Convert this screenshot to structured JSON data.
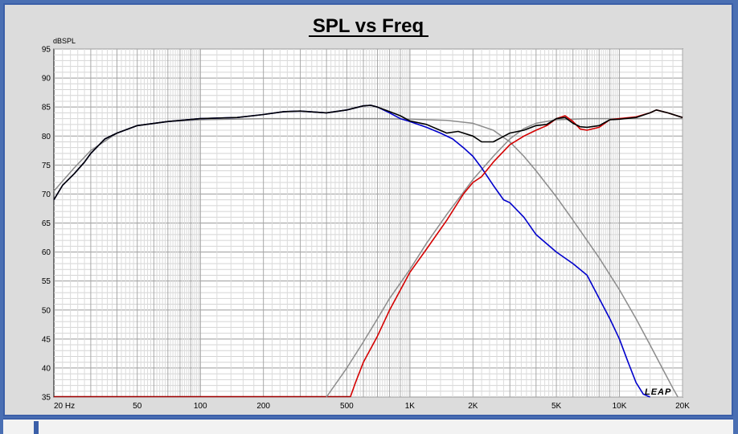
{
  "chart_data": {
    "type": "line",
    "title": "SPL vs Freq",
    "ylabel": "dBSPL",
    "xscale": "log",
    "xlim": [
      20,
      20000
    ],
    "ylim": [
      35,
      95
    ],
    "yticks": [
      35,
      40,
      45,
      50,
      55,
      60,
      65,
      70,
      75,
      80,
      85,
      90,
      95
    ],
    "xticks": [
      {
        "value": 20,
        "label": "20  Hz"
      },
      {
        "value": 50,
        "label": "50"
      },
      {
        "value": 100,
        "label": "100"
      },
      {
        "value": 200,
        "label": "200"
      },
      {
        "value": 500,
        "label": "500"
      },
      {
        "value": 1000,
        "label": "1K"
      },
      {
        "value": 2000,
        "label": "2K"
      },
      {
        "value": 5000,
        "label": "5K"
      },
      {
        "value": 10000,
        "label": "10K"
      },
      {
        "value": 20000,
        "label": "20K"
      }
    ],
    "grid": true,
    "series": [
      {
        "color": "#8c8c8c",
        "points": [
          [
            20,
            70.5
          ],
          [
            25,
            74.5
          ],
          [
            30,
            77.5
          ],
          [
            40,
            80.5
          ],
          [
            50,
            81.8
          ],
          [
            70,
            82.5
          ],
          [
            100,
            82.8
          ],
          [
            200,
            83
          ],
          [
            300,
            83
          ],
          [
            500,
            83
          ],
          [
            700,
            83
          ],
          [
            1000,
            82.9
          ],
          [
            1500,
            82.7
          ],
          [
            2000,
            82.2
          ],
          [
            2500,
            81
          ],
          [
            3000,
            79
          ],
          [
            3500,
            76.5
          ],
          [
            4000,
            74
          ],
          [
            5000,
            69.5
          ],
          [
            6000,
            65.5
          ],
          [
            7000,
            62
          ],
          [
            8000,
            59
          ],
          [
            10000,
            53.5
          ],
          [
            12000,
            48.5
          ],
          [
            14000,
            44
          ],
          [
            16000,
            40
          ],
          [
            18000,
            36.5
          ],
          [
            19000,
            35
          ]
        ]
      },
      {
        "color": "#8c8c8c",
        "points": [
          [
            400,
            35
          ],
          [
            500,
            40
          ],
          [
            600,
            44.5
          ],
          [
            700,
            48.5
          ],
          [
            800,
            52
          ],
          [
            1000,
            57
          ],
          [
            1200,
            61.5
          ],
          [
            1500,
            66.5
          ],
          [
            2000,
            72.5
          ],
          [
            2500,
            76.5
          ],
          [
            3000,
            79.5
          ],
          [
            3500,
            81.3
          ],
          [
            4000,
            82.2
          ],
          [
            5000,
            82.8
          ],
          [
            7000,
            83
          ],
          [
            10000,
            83
          ],
          [
            15000,
            83
          ],
          [
            20000,
            83
          ]
        ]
      },
      {
        "color": "#0000cc",
        "points": [
          [
            20,
            69
          ],
          [
            22,
            71.5
          ],
          [
            25,
            73.5
          ],
          [
            28,
            75.5
          ],
          [
            30,
            77
          ],
          [
            35,
            79.5
          ],
          [
            40,
            80.5
          ],
          [
            50,
            81.8
          ],
          [
            70,
            82.5
          ],
          [
            100,
            83
          ],
          [
            150,
            83.2
          ],
          [
            200,
            83.7
          ],
          [
            250,
            84.2
          ],
          [
            300,
            84.3
          ],
          [
            400,
            84
          ],
          [
            500,
            84.5
          ],
          [
            600,
            85.2
          ],
          [
            650,
            85.3
          ],
          [
            700,
            85
          ],
          [
            800,
            84
          ],
          [
            900,
            83
          ],
          [
            1000,
            82.5
          ],
          [
            1200,
            81.5
          ],
          [
            1400,
            80.5
          ],
          [
            1600,
            79.5
          ],
          [
            1800,
            78
          ],
          [
            2000,
            76.5
          ],
          [
            2200,
            74.5
          ],
          [
            2500,
            71.5
          ],
          [
            2800,
            69
          ],
          [
            3000,
            68.5
          ],
          [
            3500,
            66
          ],
          [
            4000,
            63
          ],
          [
            5000,
            60
          ],
          [
            6000,
            58
          ],
          [
            7000,
            56
          ],
          [
            8000,
            52
          ],
          [
            9000,
            48.5
          ],
          [
            10000,
            45
          ],
          [
            11000,
            41
          ],
          [
            12000,
            37.5
          ],
          [
            13000,
            35.5
          ],
          [
            14000,
            35
          ]
        ]
      },
      {
        "color": "#d40000",
        "points": [
          [
            520,
            35
          ],
          [
            550,
            37.5
          ],
          [
            600,
            41
          ],
          [
            700,
            45.5
          ],
          [
            800,
            50
          ],
          [
            1000,
            56.5
          ],
          [
            1200,
            60.5
          ],
          [
            1500,
            65.5
          ],
          [
            1800,
            70
          ],
          [
            2000,
            72
          ],
          [
            2200,
            73
          ],
          [
            2500,
            75.5
          ],
          [
            3000,
            78.5
          ],
          [
            3500,
            80
          ],
          [
            4000,
            81
          ],
          [
            4500,
            81.8
          ],
          [
            5000,
            83
          ],
          [
            5500,
            83.5
          ],
          [
            6000,
            82.5
          ],
          [
            6500,
            81.2
          ],
          [
            7000,
            81
          ],
          [
            8000,
            81.5
          ],
          [
            9000,
            82.8
          ],
          [
            10000,
            83
          ],
          [
            12000,
            83.3
          ],
          [
            14000,
            84
          ],
          [
            15000,
            84.5
          ],
          [
            17000,
            84
          ],
          [
            20000,
            83.2
          ]
        ]
      },
      {
        "color": "#000000",
        "points": [
          [
            20,
            69
          ],
          [
            22,
            71.5
          ],
          [
            25,
            73.5
          ],
          [
            28,
            75.5
          ],
          [
            30,
            77
          ],
          [
            35,
            79.5
          ],
          [
            40,
            80.5
          ],
          [
            50,
            81.8
          ],
          [
            70,
            82.5
          ],
          [
            100,
            83
          ],
          [
            150,
            83.2
          ],
          [
            200,
            83.7
          ],
          [
            250,
            84.2
          ],
          [
            300,
            84.3
          ],
          [
            400,
            84
          ],
          [
            500,
            84.5
          ],
          [
            600,
            85.2
          ],
          [
            650,
            85.3
          ],
          [
            700,
            85
          ],
          [
            800,
            84.2
          ],
          [
            900,
            83.5
          ],
          [
            1000,
            82.6
          ],
          [
            1200,
            82
          ],
          [
            1500,
            80.5
          ],
          [
            1700,
            80.8
          ],
          [
            2000,
            80
          ],
          [
            2200,
            79
          ],
          [
            2500,
            79
          ],
          [
            3000,
            80.5
          ],
          [
            3500,
            81
          ],
          [
            4000,
            81.8
          ],
          [
            4500,
            82
          ],
          [
            5000,
            83
          ],
          [
            5500,
            83.2
          ],
          [
            6000,
            82.2
          ],
          [
            6500,
            81.6
          ],
          [
            7000,
            81.5
          ],
          [
            8000,
            81.8
          ],
          [
            9000,
            82.8
          ],
          [
            10000,
            82.9
          ],
          [
            12000,
            83.2
          ],
          [
            14000,
            84
          ],
          [
            15000,
            84.5
          ],
          [
            17000,
            84
          ],
          [
            20000,
            83.2
          ]
        ]
      }
    ]
  },
  "xunit_marker": {
    "color": "#a00000",
    "level": 35,
    "from": 20,
    "to": 520
  },
  "logo": "LEAP"
}
